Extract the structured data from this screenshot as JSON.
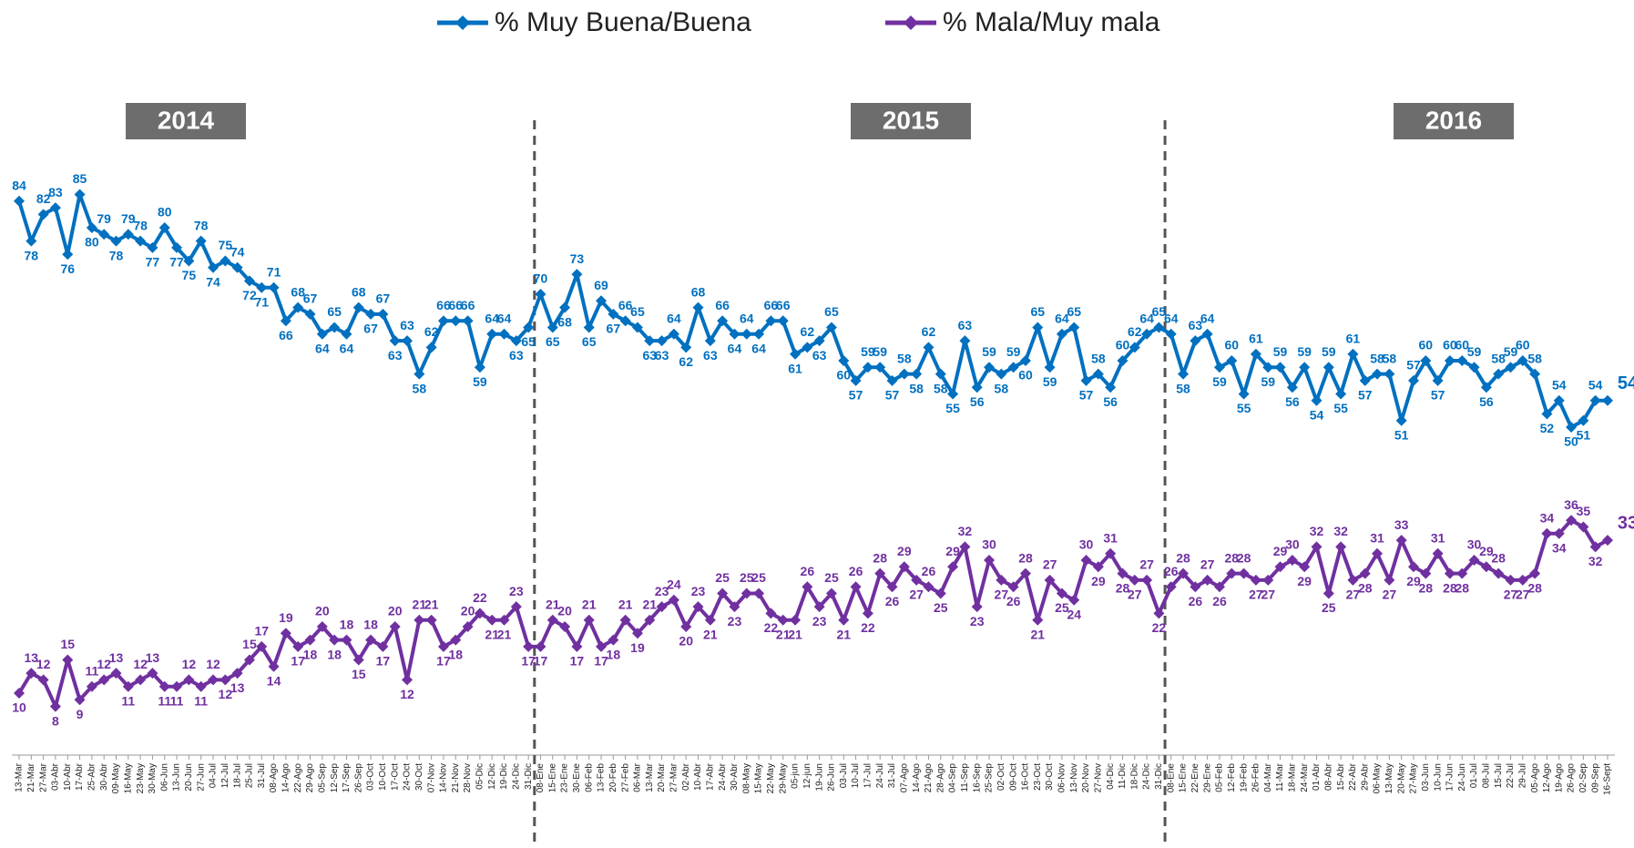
{
  "chart_data": {
    "type": "line",
    "annotations": [
      "2014",
      "2015",
      "2016"
    ],
    "categories": [
      "13-Mar",
      "21-Mar",
      "27-Mar",
      "03-Abr",
      "10-Abr",
      "17-Abr",
      "25-Abr",
      "30-Abr",
      "09-May",
      "16-May",
      "23-May",
      "30-May",
      "06-Jun",
      "13-Jun",
      "20-Jun",
      "27-Jun",
      "04-Jul",
      "12-Jul",
      "18-Jul",
      "25-Jul",
      "31-Jul",
      "08-Ago",
      "14-Ago",
      "22-Ago",
      "29-Ago",
      "05-Sep",
      "12-Sep",
      "17-Sep",
      "26-Sep",
      "03-Oct",
      "10-Oct",
      "17-Oct",
      "24-Oct",
      "30-Oct",
      "07-Nov",
      "14-Nov",
      "21-Nov",
      "28-Nov",
      "05-Dic",
      "12-Dic",
      "19-Dic",
      "24-Dic",
      "31-Dic",
      "08-Ene",
      "15-Ene",
      "23-Ene",
      "30-Ene",
      "06-Feb",
      "13-Feb",
      "20-Feb",
      "27-Feb",
      "06-Mar",
      "13-Mar",
      "20-Mar",
      "27-Mar",
      "02-Abr",
      "10-Abr",
      "17-Abr",
      "24-Abr",
      "30-Abr",
      "08-May",
      "15-May",
      "22-May",
      "29-May",
      "05-jun",
      "12-jun",
      "19-Jun",
      "26-Jun",
      "03-Jul",
      "10-Jul",
      "17-Jul",
      "24-Jul",
      "31-Jul",
      "07-Ago",
      "14-Ago",
      "21-Ago",
      "28-Ago",
      "04-Sep",
      "11-Sep",
      "16-Sep",
      "25-Sep",
      "02-Oct",
      "09-Oct",
      "16-Oct",
      "23-Oct",
      "30-Oct",
      "06-Nov",
      "13-Nov",
      "20-Nov",
      "27-Nov",
      "04-Dic",
      "11-Dic",
      "18-Dic",
      "24-Dic",
      "31-Dic",
      "08-Ene",
      "15-Ene",
      "22-Ene",
      "29-Ene",
      "05-Feb",
      "12-Feb",
      "19-Feb",
      "26-Feb",
      "04-Mar",
      "11-Mar",
      "18-Mar",
      "24-Mar",
      "01-Abr",
      "08-Abr",
      "15-Abr",
      "22-Abr",
      "29-Abr",
      "06-May",
      "13-May",
      "20-May",
      "27-May",
      "03-Jun",
      "10-Jun",
      "17-Jun",
      "24-Jun",
      "01-Jul",
      "08-Jul",
      "15-Jul",
      "22-Jul",
      "29-Jul",
      "05-Ago",
      "12-Ago",
      "19-Ago",
      "26-Ago",
      "02-Sep",
      "09-Sep",
      "16-Sept"
    ],
    "series": [
      {
        "name": "% Muy Buena/Buena",
        "color": "#0070c0",
        "values": [
          84,
          78,
          82,
          83,
          76,
          85,
          80,
          79,
          78,
          79,
          78,
          77,
          80,
          77,
          75,
          78,
          74,
          75,
          74,
          72,
          71,
          71,
          66,
          68,
          67,
          64,
          65,
          64,
          68,
          67,
          67,
          63,
          63,
          58,
          62,
          66,
          66,
          66,
          59,
          64,
          64,
          63,
          65,
          70,
          65,
          68,
          73,
          65,
          69,
          67,
          66,
          65,
          63,
          63,
          64,
          62,
          68,
          63,
          66,
          64,
          64,
          64,
          66,
          66,
          61,
          62,
          63,
          65,
          60,
          57,
          59,
          59,
          57,
          58,
          58,
          62,
          58,
          55,
          63,
          56,
          59,
          58,
          59,
          60,
          65,
          59,
          64,
          65,
          57,
          58,
          56,
          60,
          62,
          64,
          65,
          64,
          58,
          63,
          64,
          59,
          60,
          55,
          61,
          59,
          59,
          56,
          59,
          54,
          59,
          55,
          61,
          57,
          58,
          58,
          51,
          57,
          60,
          57,
          60,
          60,
          59,
          56,
          58,
          59,
          60,
          58,
          52,
          54,
          50,
          51,
          54,
          54
        ]
      },
      {
        "name": "% Mala/Muy mala",
        "color": "#7030a0",
        "values": [
          10,
          13,
          12,
          8,
          15,
          9,
          11,
          12,
          13,
          11,
          12,
          13,
          11,
          11,
          12,
          11,
          12,
          12,
          13,
          15,
          17,
          14,
          19,
          17,
          18,
          20,
          18,
          18,
          15,
          18,
          17,
          20,
          12,
          21,
          21,
          17,
          18,
          20,
          22,
          21,
          21,
          23,
          17,
          17,
          21,
          20,
          17,
          21,
          17,
          18,
          21,
          19,
          21,
          23,
          24,
          20,
          23,
          21,
          25,
          23,
          25,
          25,
          22,
          21,
          21,
          26,
          23,
          25,
          21,
          26,
          22,
          28,
          26,
          29,
          27,
          26,
          25,
          29,
          32,
          23,
          30,
          27,
          26,
          28,
          21,
          27,
          25,
          24,
          30,
          29,
          31,
          28,
          27,
          27,
          22,
          26,
          28,
          26,
          27,
          26,
          28,
          28,
          27,
          27,
          29,
          30,
          29,
          32,
          25,
          32,
          27,
          28,
          31,
          27,
          33,
          29,
          28,
          31,
          28,
          28,
          30,
          29,
          28,
          27,
          27,
          28,
          34,
          34,
          36,
          35,
          32,
          33
        ]
      }
    ],
    "ylim": [
      0,
      100
    ]
  }
}
